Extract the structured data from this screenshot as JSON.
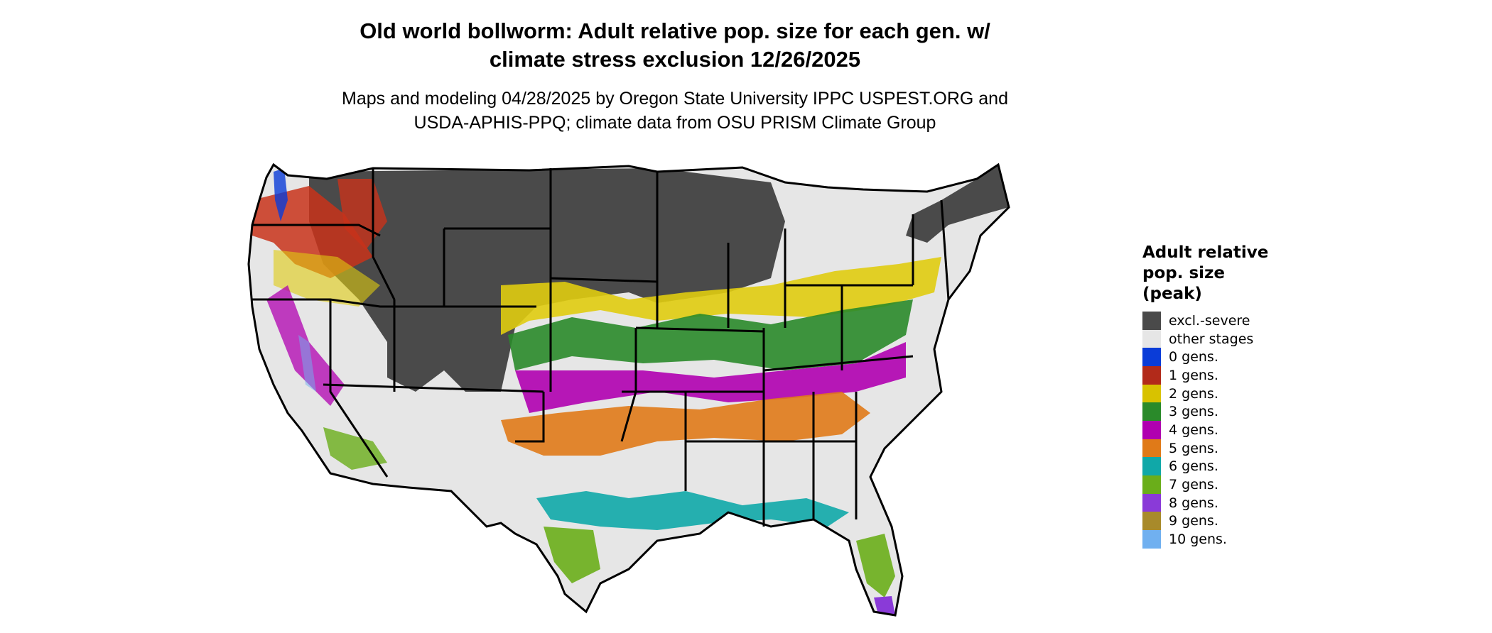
{
  "title_line1": "Old world bollworm: Adult relative pop. size for each gen. w/",
  "title_line2": "climate stress exclusion 12/26/2025",
  "subtitle_line1": "Maps and modeling 04/28/2025 by Oregon State University IPPC USPEST.ORG and",
  "subtitle_line2": "USDA-APHIS-PPQ; climate data from OSU PRISM Climate Group",
  "legend": {
    "title_lines": [
      "Adult relative",
      "pop. size",
      "(peak)"
    ],
    "items": [
      {
        "label": "excl.-severe",
        "color": "#4a4a4a"
      },
      {
        "label": "other stages",
        "color": "#e6e6e6"
      },
      {
        "label": "0 gens.",
        "color": "#0a3cd8"
      },
      {
        "label": "1 gens.",
        "color": "#b22a1a"
      },
      {
        "label": "2 gens.",
        "color": "#d8c200"
      },
      {
        "label": "3 gens.",
        "color": "#2a8a2a"
      },
      {
        "label": "4 gens.",
        "color": "#b000b0"
      },
      {
        "label": "5 gens.",
        "color": "#e07a18"
      },
      {
        "label": "6 gens.",
        "color": "#10a8a8"
      },
      {
        "label": "7 gens.",
        "color": "#6aae1a"
      },
      {
        "label": "8 gens.",
        "color": "#8a3ad8"
      },
      {
        "label": "9 gens.",
        "color": "#a88a2a"
      },
      {
        "label": "10 gens.",
        "color": "#70b0f0"
      }
    ]
  }
}
